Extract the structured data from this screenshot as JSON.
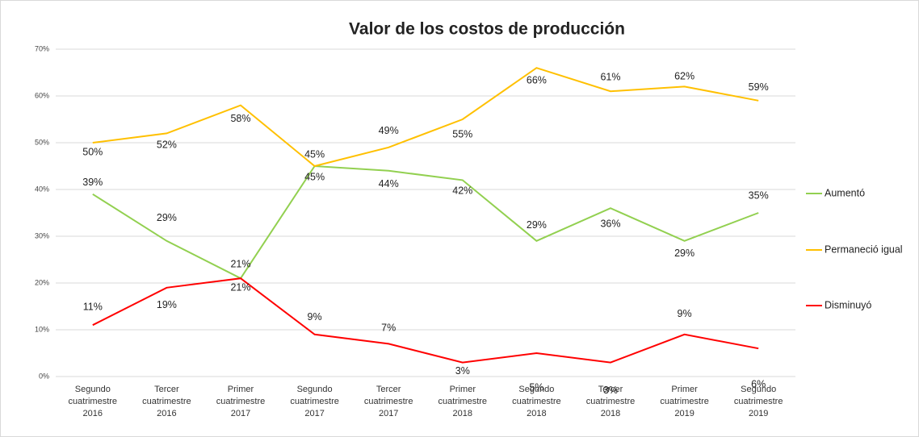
{
  "chart_data": {
    "type": "line",
    "title": "Valor de los costos de producción",
    "categories": [
      [
        "Segundo",
        "cuatrimestre",
        "2016"
      ],
      [
        "Tercer",
        "cuatrimestre",
        "2016"
      ],
      [
        "Primer",
        "cuatrimestre",
        "2017"
      ],
      [
        "Segundo",
        "cuatrimestre",
        "2017"
      ],
      [
        "Tercer",
        "cuatrimestre",
        "2017"
      ],
      [
        "Primer",
        "cuatrimestre",
        "2018"
      ],
      [
        "Segundo",
        "cuatrimestre",
        "2018"
      ],
      [
        "Tercer",
        "cuatrimestre",
        "2018"
      ],
      [
        "Primer",
        "cuatrimestre",
        "2019"
      ],
      [
        "Segundo",
        "cuatrimestre",
        "2019"
      ]
    ],
    "series": [
      {
        "name": "Aumentó",
        "color": "#92d050",
        "values": [
          39,
          29,
          21,
          45,
          44,
          42,
          29,
          36,
          29,
          35
        ],
        "value_labels": [
          "39%",
          "29%",
          "21%",
          "45%",
          "44%",
          "42%",
          "29%",
          "36%",
          "29%",
          "35%"
        ]
      },
      {
        "name": "Permaneció igual",
        "color": "#ffc000",
        "values": [
          50,
          52,
          58,
          45,
          49,
          55,
          66,
          61,
          62,
          59
        ],
        "value_labels": [
          "50%",
          "52%",
          "58%",
          "45%",
          "49%",
          "55%",
          "66%",
          "61%",
          "62%",
          "59%"
        ]
      },
      {
        "name": "Disminuyó",
        "color": "#ff0000",
        "values": [
          11,
          19,
          21,
          9,
          7,
          3,
          5,
          3,
          9,
          6
        ],
        "value_labels": [
          "11%",
          "19%",
          "21%",
          "9%",
          "7%",
          "3%",
          "5%",
          "3%",
          "9%",
          "6%"
        ]
      }
    ],
    "ylim": [
      0,
      70
    ],
    "yticks": [
      {
        "value": 0,
        "label": "0%"
      },
      {
        "value": 10,
        "label": "10%"
      },
      {
        "value": 20,
        "label": "20%"
      },
      {
        "value": 30,
        "label": "30%"
      },
      {
        "value": 40,
        "label": "40%"
      },
      {
        "value": 50,
        "label": "50%"
      },
      {
        "value": 60,
        "label": "60%"
      },
      {
        "value": 70,
        "label": "70%"
      }
    ],
    "grid": true,
    "legend": "right"
  }
}
